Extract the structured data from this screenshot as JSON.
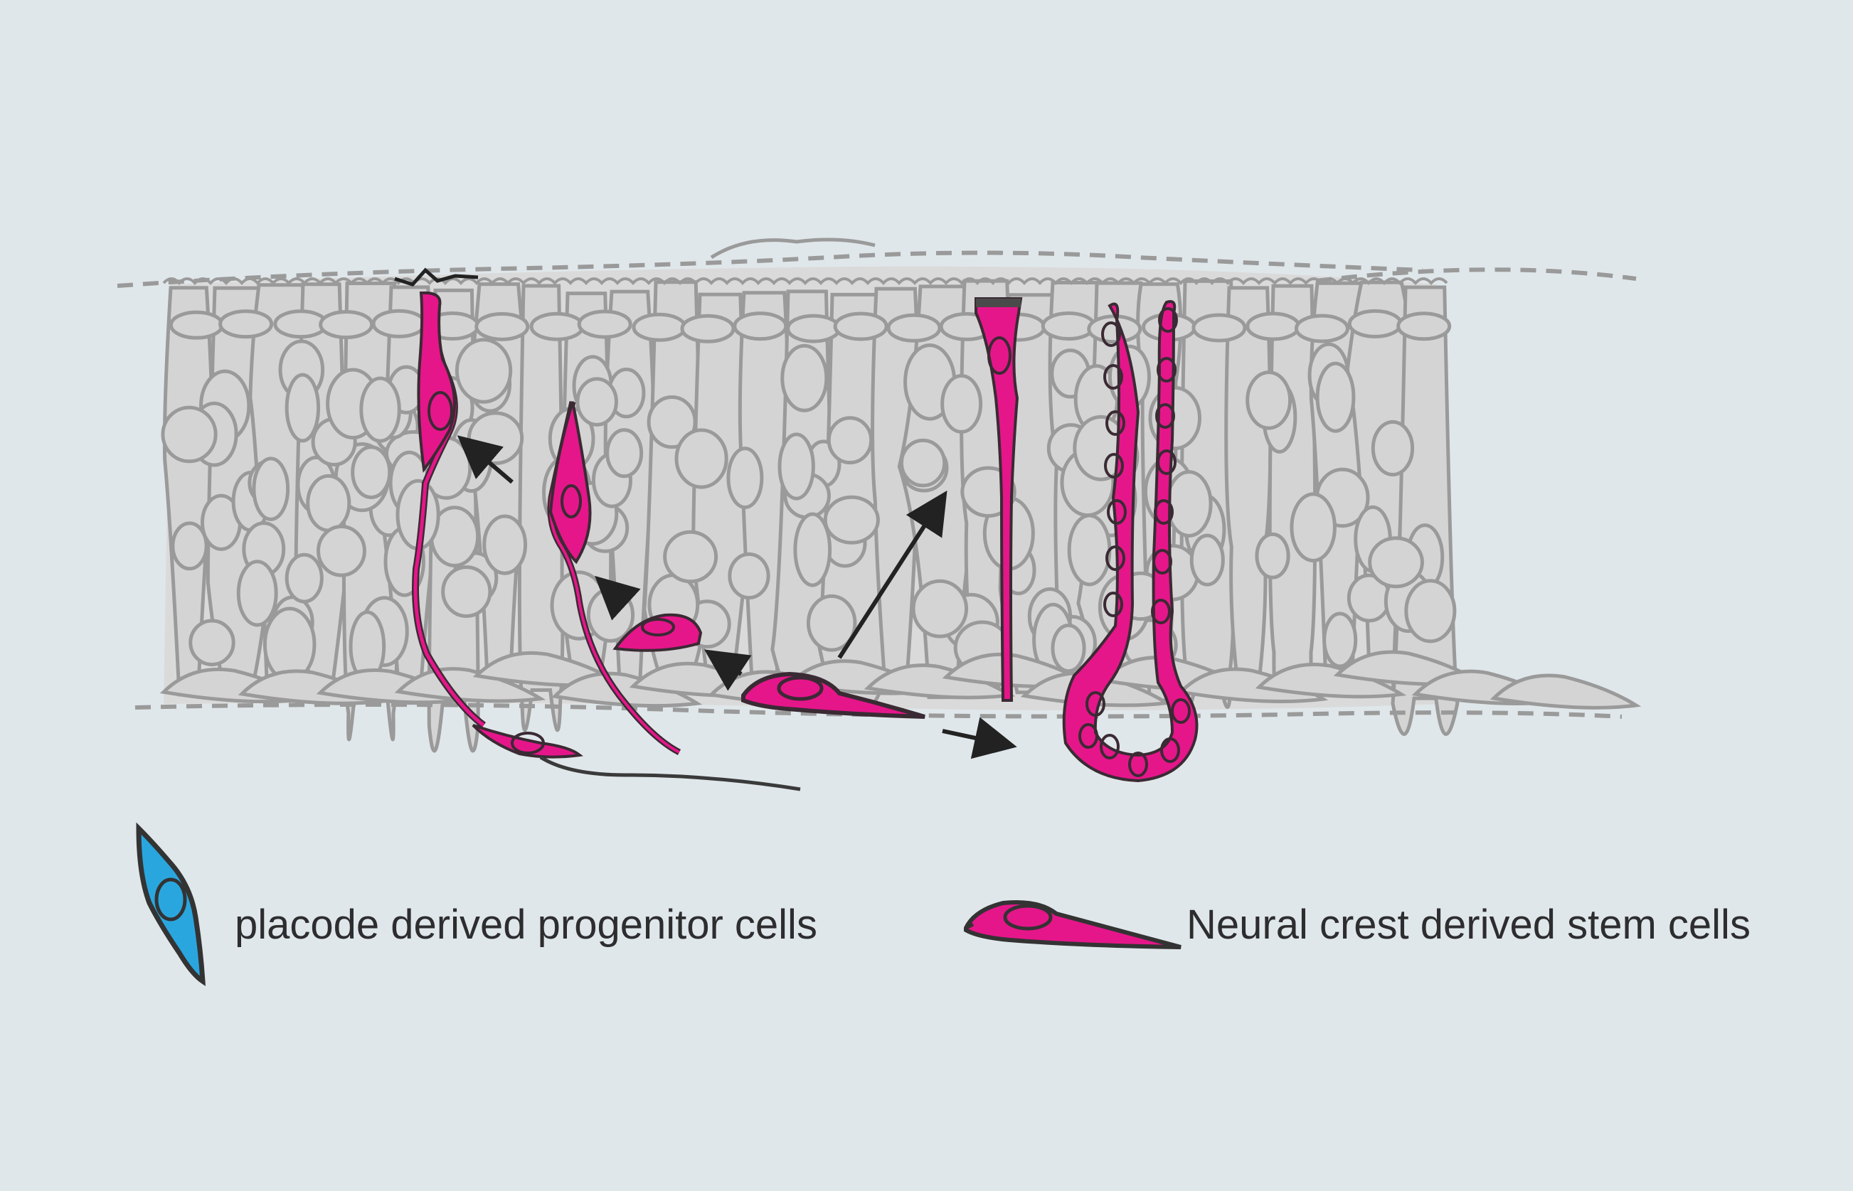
{
  "colors": {
    "background": "#e0e7ea",
    "tissue_fill": "#d4d4d4",
    "tissue_stroke": "#9a9a9a",
    "neural_crest_fill": "#e5168a",
    "neural_crest_stroke": "#3a2a33",
    "placode_fill": "#2aa6df",
    "placode_stroke": "#333333",
    "arrow": "#222222",
    "label_text": "#2d2d2f"
  },
  "legend": {
    "placode": {
      "icon": "placode-cell-icon",
      "label": "placode derived progenitor cells"
    },
    "neural_crest": {
      "icon": "neural-crest-cell-icon",
      "label": "Neural crest derived stem cells"
    }
  }
}
